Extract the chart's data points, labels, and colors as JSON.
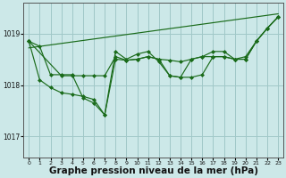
{
  "background_color": "#cce8e8",
  "grid_color": "#a0c8c8",
  "line_color": "#1a6b1a",
  "marker_color": "#1a6b1a",
  "xlabel": "Graphe pression niveau de la mer (hPa)",
  "xlabel_fontsize": 7.5,
  "ylim": [
    1016.6,
    1019.6
  ],
  "xlim": [
    -0.5,
    23.5
  ],
  "yticks": [
    1017,
    1018,
    1019
  ],
  "xticks": [
    0,
    1,
    2,
    3,
    4,
    5,
    6,
    7,
    8,
    9,
    10,
    11,
    12,
    13,
    14,
    15,
    16,
    17,
    18,
    19,
    20,
    21,
    22,
    23
  ],
  "series1": [
    1018.85,
    1018.75,
    1018.2,
    1018.2,
    1018.2,
    1017.75,
    1017.65,
    1017.42,
    1018.65,
    1018.5,
    1018.6,
    1018.65,
    1018.45,
    1018.18,
    1018.15,
    1018.15,
    1018.2,
    1018.55,
    1018.55,
    1018.5,
    1018.5,
    1018.85,
    1019.1,
    1019.32
  ],
  "series2": [
    1018.85,
    1018.1,
    1017.95,
    1017.85,
    1017.82,
    1017.78,
    1017.72,
    1017.42,
    1018.5,
    1018.48,
    1018.5,
    1018.55,
    1018.5,
    1018.18,
    1018.15,
    1018.5,
    1018.55,
    1018.65,
    1018.65,
    1018.5,
    1018.5,
    1018.85,
    1019.1,
    1019.32
  ],
  "series3_x": [
    0,
    3,
    4,
    5,
    6,
    7,
    8,
    9,
    10,
    11,
    12,
    13,
    14,
    15,
    16,
    17,
    18,
    19,
    20,
    21,
    22,
    23
  ],
  "series3_y": [
    1018.85,
    1018.18,
    1018.18,
    1018.18,
    1018.18,
    1018.18,
    1018.55,
    1018.48,
    1018.5,
    1018.55,
    1018.5,
    1018.48,
    1018.45,
    1018.5,
    1018.55,
    1018.55,
    1018.55,
    1018.5,
    1018.55,
    1018.85,
    1019.1,
    1019.32
  ],
  "trend_x": [
    0,
    23
  ],
  "trend_y": [
    1018.72,
    1019.38
  ]
}
